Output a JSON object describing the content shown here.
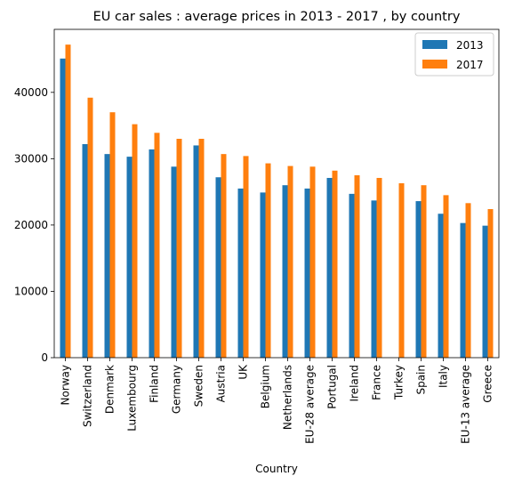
{
  "chart_data": {
    "type": "bar",
    "title": "EU car sales : average prices in 2013 - 2017 , by country",
    "xlabel": "Country",
    "ylabel": "",
    "ylim": [
      0,
      49500
    ],
    "yticks": [
      0,
      10000,
      20000,
      30000,
      40000
    ],
    "grid": false,
    "legend_position": "top-right",
    "categories": [
      "Norway",
      "Switzerland",
      "Denmark",
      "Luxembourg",
      "Finland",
      "Germany",
      "Sweden",
      "Austria",
      "UK",
      "Belgium",
      "Netherlands",
      "EU-28 average",
      "Portugal",
      "Ireland",
      "France",
      "Turkey",
      "Spain",
      "Italy",
      "EU-13 average",
      "Greece"
    ],
    "series": [
      {
        "name": "2013",
        "color": "#1f77b4",
        "values": [
          45100,
          32200,
          30700,
          30300,
          31400,
          28800,
          32000,
          27200,
          25500,
          24900,
          26000,
          25500,
          27100,
          24700,
          23700,
          0,
          23600,
          21700,
          20300,
          19900
        ]
      },
      {
        "name": "2017",
        "color": "#ff7f0e",
        "values": [
          47200,
          39200,
          37000,
          35200,
          33900,
          33000,
          33000,
          30700,
          30400,
          29300,
          28900,
          28800,
          28200,
          27500,
          27100,
          26300,
          26000,
          24500,
          23300,
          22400
        ]
      }
    ]
  }
}
